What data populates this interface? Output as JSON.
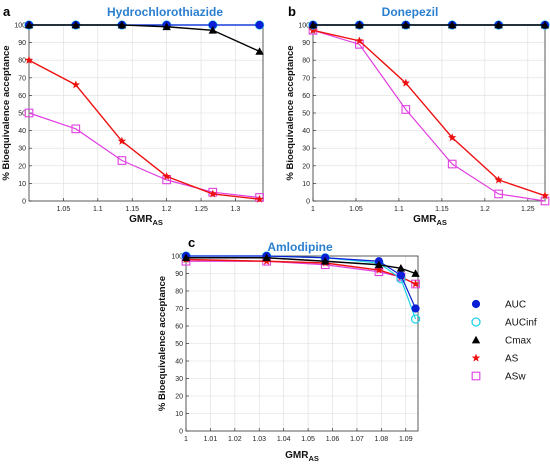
{
  "colors": {
    "AUC": "#0b1fd6",
    "AUCinf": "#22d3e6",
    "Cmax": "#000000",
    "AS": "#ee1111",
    "ASw": "#e040e0",
    "title": "#2a7fd0"
  },
  "ylabel": "% Bioequivalence acceptance",
  "xlabel_main": "GMR",
  "xlabel_sub": "AS",
  "legend": [
    {
      "name": "AUC",
      "marker": "circle-filled"
    },
    {
      "name": "AUCinf",
      "marker": "circle-open"
    },
    {
      "name": "Cmax",
      "marker": "triangle-filled"
    },
    {
      "name": "AS",
      "marker": "star"
    },
    {
      "name": "ASw",
      "marker": "square-open"
    }
  ],
  "chart_data": [
    {
      "panel": "a",
      "type": "line",
      "title": "Hydrochlorothiazide",
      "xlim": [
        1.0,
        1.34
      ],
      "ylim": [
        0,
        100
      ],
      "xticks": [
        1.05,
        1.1,
        1.15,
        1.2,
        1.25,
        1.3
      ],
      "yticks": [
        0,
        10,
        20,
        30,
        40,
        50,
        60,
        70,
        80,
        90,
        100
      ],
      "x": [
        1.0,
        1.068,
        1.135,
        1.2,
        1.267,
        1.335
      ],
      "series": [
        {
          "name": "AUC",
          "values": [
            100,
            100,
            100,
            100,
            100,
            100
          ]
        },
        {
          "name": "AUCinf",
          "values": [
            100,
            100,
            100,
            100,
            100,
            100
          ]
        },
        {
          "name": "Cmax",
          "values": [
            100,
            100,
            100,
            99,
            97,
            85
          ]
        },
        {
          "name": "AS",
          "values": [
            80,
            66,
            34,
            14,
            4,
            1
          ]
        },
        {
          "name": "ASw",
          "values": [
            50,
            41,
            23,
            12,
            5,
            2
          ]
        }
      ]
    },
    {
      "panel": "b",
      "type": "line",
      "title": "Donepezil",
      "xlim": [
        1.0,
        1.27
      ],
      "ylim": [
        0,
        100
      ],
      "xticks": [
        1,
        1.05,
        1.1,
        1.15,
        1.2,
        1.25
      ],
      "yticks": [
        0,
        10,
        20,
        30,
        40,
        50,
        60,
        70,
        80,
        90,
        100
      ],
      "x": [
        1.0,
        1.054,
        1.108,
        1.162,
        1.216,
        1.27
      ],
      "series": [
        {
          "name": "AUC",
          "values": [
            100,
            100,
            100,
            100,
            100,
            100
          ]
        },
        {
          "name": "AUCinf",
          "values": [
            100,
            100,
            100,
            100,
            100,
            100
          ]
        },
        {
          "name": "Cmax",
          "values": [
            100,
            100,
            100,
            100,
            100,
            100
          ]
        },
        {
          "name": "AS",
          "values": [
            97,
            91,
            67,
            36,
            12,
            3
          ]
        },
        {
          "name": "ASw",
          "values": [
            97,
            89,
            52,
            21,
            4,
            0
          ]
        }
      ]
    },
    {
      "panel": "c",
      "type": "line",
      "title": "Amlodipine",
      "xlim": [
        1.0,
        1.095
      ],
      "ylim": [
        0,
        100
      ],
      "xticks": [
        1,
        1.01,
        1.02,
        1.03,
        1.04,
        1.05,
        1.06,
        1.07,
        1.08,
        1.09
      ],
      "yticks": [
        0,
        10,
        20,
        30,
        40,
        50,
        60,
        70,
        80,
        90,
        100
      ],
      "x": [
        1.0,
        1.033,
        1.057,
        1.079,
        1.088,
        1.094
      ],
      "series": [
        {
          "name": "AUC",
          "values": [
            100,
            100,
            99,
            97,
            89,
            70
          ]
        },
        {
          "name": "AUCinf",
          "values": [
            100,
            100,
            99,
            96,
            87,
            64
          ]
        },
        {
          "name": "Cmax",
          "values": [
            99,
            99,
            97,
            95,
            93,
            90
          ]
        },
        {
          "name": "AS",
          "values": [
            98,
            97,
            96,
            92,
            88,
            84
          ]
        },
        {
          "name": "ASw",
          "values": [
            97,
            97,
            95,
            91,
            88,
            84
          ]
        }
      ]
    }
  ]
}
